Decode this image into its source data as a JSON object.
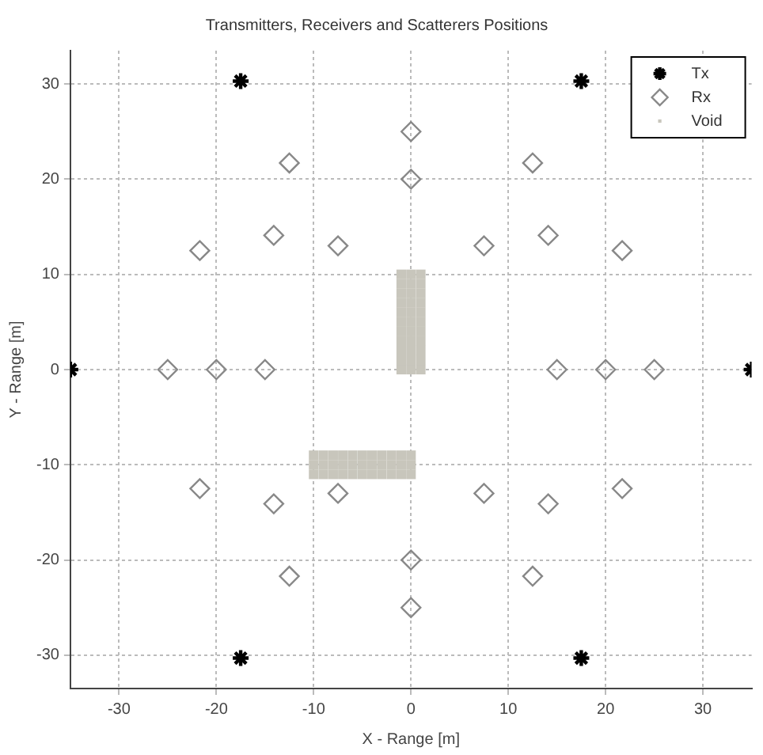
{
  "chart_data": {
    "type": "scatter",
    "title": "Transmitters, Receivers and Scatterers Positions",
    "xlabel": "X - Range [m]",
    "ylabel": "Y - Range [m]",
    "xlim": [
      -35,
      35
    ],
    "ylim": [
      -33.5,
      33.5
    ],
    "xticks": [
      -30,
      -20,
      -10,
      0,
      10,
      20,
      30
    ],
    "yticks": [
      -30,
      -20,
      -10,
      0,
      10,
      20,
      30
    ],
    "grid": true,
    "legend": "top right",
    "series": [
      {
        "name": "Tx",
        "color": "#000000",
        "marker": "cross",
        "x": [
          -17.5,
          17.5,
          -35,
          35,
          -17.5,
          17.5
        ],
        "values": [
          30.3,
          30.3,
          0,
          0,
          -30.3,
          -30.3
        ]
      },
      {
        "name": "Rx",
        "color": "#888888",
        "marker": "diamond",
        "x": [
          0,
          0,
          -12.5,
          12.5,
          -21.7,
          -14.1,
          -7.5,
          7.5,
          14.1,
          21.7,
          -25,
          -20,
          -15,
          15,
          20,
          25,
          -21.7,
          -14.1,
          -7.5,
          7.5,
          14.1,
          21.7,
          -12.5,
          12.5,
          0,
          0
        ],
        "values": [
          25,
          20,
          21.7,
          21.7,
          12.5,
          14.1,
          13,
          13,
          14.1,
          12.5,
          0,
          0,
          0,
          0,
          0,
          0,
          -12.5,
          -14.1,
          -13,
          -13,
          -14.1,
          -12.5,
          -21.7,
          -21.7,
          -20,
          -25
        ]
      },
      {
        "name": "Void",
        "color": "#c8c6bc",
        "marker": "square",
        "x": [
          -1,
          0,
          1,
          -1,
          0,
          1,
          -1,
          0,
          1,
          -1,
          0,
          1,
          -1,
          0,
          1,
          -1,
          0,
          1,
          -1,
          0,
          1,
          -1,
          0,
          1,
          -1,
          0,
          1,
          -1,
          0,
          1,
          -1,
          0,
          1,
          -10,
          -9,
          -8,
          -7,
          -6,
          -5,
          -4,
          -3,
          -2,
          -1,
          0,
          -10,
          -9,
          -8,
          -7,
          -6,
          -5,
          -4,
          -3,
          -2,
          -1,
          0,
          -10,
          -9,
          -8,
          -7,
          -6,
          -5,
          -4,
          -3,
          -2,
          -1,
          0
        ],
        "values": [
          0,
          0,
          0,
          1,
          1,
          1,
          2,
          2,
          2,
          3,
          3,
          3,
          4,
          4,
          4,
          5,
          5,
          5,
          6,
          6,
          6,
          7,
          7,
          7,
          8,
          8,
          8,
          9,
          9,
          9,
          10,
          10,
          10,
          -9,
          -9,
          -9,
          -9,
          -9,
          -9,
          -9,
          -9,
          -9,
          -9,
          -9,
          -10,
          -10,
          -10,
          -10,
          -10,
          -10,
          -10,
          -10,
          -10,
          -10,
          -10,
          -11,
          -11,
          -11,
          -11,
          -11,
          -11,
          -11,
          -11,
          -11,
          -11,
          -11
        ]
      }
    ]
  }
}
